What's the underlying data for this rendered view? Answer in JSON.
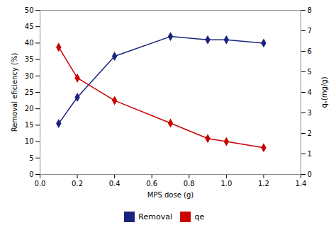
{
  "chart_data": {
    "type": "line",
    "x": [
      0.1,
      0.2,
      0.4,
      0.7,
      0.9,
      1.0,
      1.2
    ],
    "xlabel": "MPS dose (g)",
    "ylabel": "Removal eficiency (%)",
    "y2label": "qₑ(mg/g)",
    "xlim": [
      0,
      1.4
    ],
    "ylim": [
      0,
      50
    ],
    "y2lim": [
      0,
      8
    ],
    "xticks": [
      {
        "value": 0,
        "label": "0.0"
      },
      0.2,
      0.4,
      0.6,
      0.8,
      {
        "value": 1.0,
        "label": "1.0"
      },
      1.2,
      1.4
    ],
    "yticks": [
      0,
      5,
      10,
      15,
      20,
      25,
      30,
      35,
      40,
      45,
      50
    ],
    "y2ticks": [
      0,
      1,
      2,
      3,
      4,
      5,
      6,
      7,
      8
    ],
    "series": [
      {
        "name": "Removal",
        "color": "#1a237e",
        "marker": "diamond",
        "values": [
          15.5,
          23.5,
          36.0,
          42.0,
          41.0,
          41.0,
          40.0
        ]
      },
      {
        "name": "qe",
        "color": "#cc0000",
        "marker": "diamond",
        "axis": "y2",
        "values": [
          6.2,
          4.7,
          3.6,
          2.5,
          1.75,
          1.6,
          1.3
        ]
      }
    ],
    "legend": "bottom"
  }
}
